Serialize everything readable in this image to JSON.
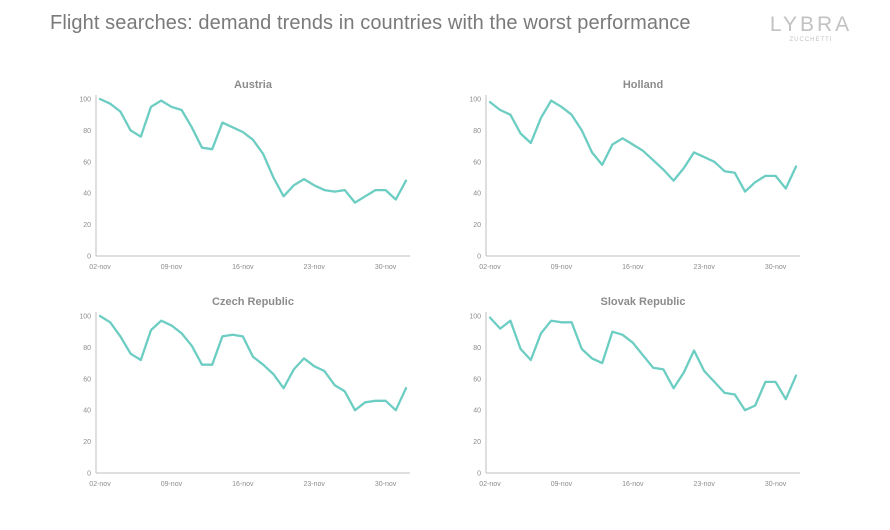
{
  "header": {
    "title": "Flight searches: demand trends in countries with the worst performance",
    "logo": {
      "word": "LYBRA",
      "sub": "ZUCCHETTI"
    }
  },
  "colors": {
    "line": "#6ccdc3",
    "axis": "#bfbfbf",
    "text": "#8c8c8c"
  },
  "chart_data": [
    {
      "type": "line",
      "title": "Austria",
      "xlabel": "",
      "ylabel": "",
      "ylim": [
        0,
        100
      ],
      "yticks": [
        0,
        20,
        40,
        60,
        80,
        100
      ],
      "x_tick_labels": [
        "02-nov",
        "09-nov",
        "16-nov",
        "23-nov",
        "30-nov"
      ],
      "x_tick_index": [
        0,
        7,
        14,
        21,
        28
      ],
      "grid": false,
      "legend": "none",
      "values": [
        100,
        97,
        92,
        80,
        76,
        95,
        99,
        95,
        93,
        82,
        69,
        68,
        85,
        82,
        79,
        74,
        65,
        50,
        38,
        45,
        49,
        45,
        42,
        41,
        42,
        34,
        38,
        42,
        42,
        36,
        48
      ]
    },
    {
      "type": "line",
      "title": "Holland",
      "xlabel": "",
      "ylabel": "",
      "ylim": [
        0,
        100
      ],
      "yticks": [
        0,
        20,
        40,
        60,
        80,
        100
      ],
      "x_tick_labels": [
        "02-nov",
        "09-nov",
        "16-nov",
        "23-nov",
        "30-nov"
      ],
      "x_tick_index": [
        0,
        7,
        14,
        21,
        28
      ],
      "grid": false,
      "legend": "none",
      "values": [
        98,
        93,
        90,
        78,
        72,
        88,
        99,
        95,
        90,
        80,
        66,
        58,
        71,
        75,
        71,
        67,
        61,
        55,
        48,
        56,
        66,
        63,
        60,
        54,
        53,
        41,
        47,
        51,
        51,
        43,
        57
      ]
    },
    {
      "type": "line",
      "title": "Czech Republic",
      "xlabel": "",
      "ylabel": "",
      "ylim": [
        0,
        100
      ],
      "yticks": [
        0,
        20,
        40,
        60,
        80,
        100
      ],
      "x_tick_labels": [
        "02-nov",
        "09-nov",
        "16-nov",
        "23-nov",
        "30-nov"
      ],
      "x_tick_index": [
        0,
        7,
        14,
        21,
        28
      ],
      "grid": false,
      "legend": "none",
      "values": [
        100,
        96,
        87,
        76,
        72,
        91,
        97,
        94,
        89,
        81,
        69,
        69,
        87,
        88,
        87,
        74,
        69,
        63,
        54,
        66,
        73,
        68,
        65,
        56,
        52,
        40,
        45,
        46,
        46,
        40,
        54
      ]
    },
    {
      "type": "line",
      "title": "Slovak Republic",
      "xlabel": "",
      "ylabel": "",
      "ylim": [
        0,
        100
      ],
      "yticks": [
        0,
        20,
        40,
        60,
        80,
        100
      ],
      "x_tick_labels": [
        "02-nov",
        "09-nov",
        "16-nov",
        "23-nov",
        "30-nov"
      ],
      "x_tick_index": [
        0,
        7,
        14,
        21,
        28
      ],
      "grid": false,
      "legend": "none",
      "values": [
        99,
        92,
        97,
        79,
        72,
        89,
        97,
        96,
        96,
        79,
        73,
        70,
        90,
        88,
        83,
        75,
        67,
        66,
        54,
        64,
        78,
        65,
        58,
        51,
        50,
        40,
        43,
        58,
        58,
        47,
        62
      ]
    }
  ]
}
